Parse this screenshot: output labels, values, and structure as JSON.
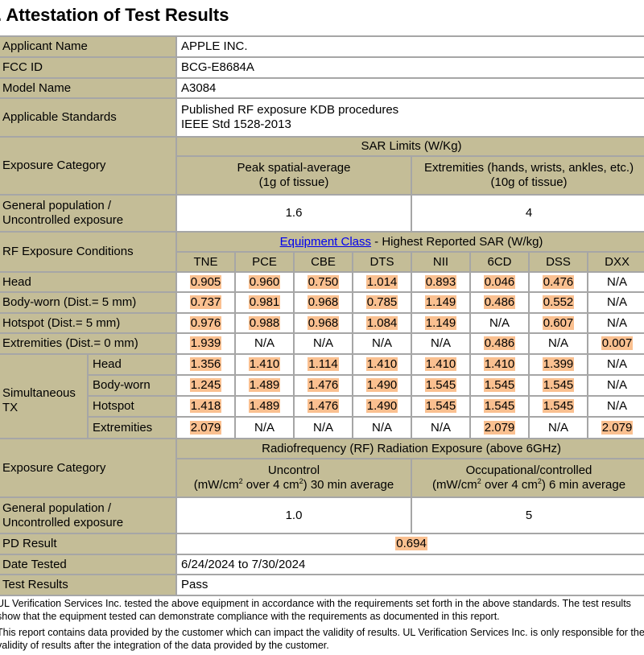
{
  "title": ". Attestation of Test Results",
  "applicant": {
    "label": "Applicant Name",
    "value": "APPLE INC."
  },
  "fcc": {
    "label": "FCC ID",
    "value": "BCG-E8684A"
  },
  "model": {
    "label": "Model Name",
    "value": "A3084"
  },
  "standards": {
    "label": "Applicable Standards",
    "values": [
      "Published RF exposure KDB procedures",
      "IEEE Std 1528-2013"
    ]
  },
  "sar_limits": {
    "category_label": "Exposure Category",
    "header": "SAR Limits (W/Kg)",
    "col1": [
      "Peak spatial-average",
      "(1g of tissue)"
    ],
    "col2": [
      "Extremities (hands, wrists, ankles, etc.)",
      "(10g of tissue)"
    ],
    "gen_pop_label": [
      "General population /",
      "Uncontrolled exposure"
    ],
    "values": [
      "1.6",
      "4"
    ]
  },
  "sar": {
    "conditions_label": "RF Exposure Conditions",
    "link": "Equipment Class",
    "header_rest": " - Highest Reported SAR (W/kg)",
    "columns": [
      "TNE",
      "PCE",
      "CBE",
      "DTS",
      "NII",
      "6CD",
      "DSS",
      "DXX"
    ],
    "sim_label": [
      "Simultaneous",
      "TX"
    ],
    "highlight_color": "#fac090",
    "rows": [
      {
        "label": "Head",
        "values": [
          "0.905",
          "0.960",
          "0.750",
          "1.014",
          "0.893",
          "0.046",
          "0.476",
          "N/A"
        ]
      },
      {
        "label": "Body-worn (Dist.= 5 mm)",
        "values": [
          "0.737",
          "0.981",
          "0.968",
          "0.785",
          "1.149",
          "0.486",
          "0.552",
          "N/A"
        ]
      },
      {
        "label": "Hotspot (Dist.= 5 mm)",
        "values": [
          "0.976",
          "0.988",
          "0.968",
          "1.084",
          "1.149",
          "N/A",
          "0.607",
          "N/A"
        ]
      },
      {
        "label": "Extremities (Dist.= 0 mm)",
        "values": [
          "1.939",
          "N/A",
          "N/A",
          "N/A",
          "N/A",
          "0.486",
          "N/A",
          "0.007"
        ]
      }
    ],
    "sim_rows": [
      {
        "label": "Head",
        "values": [
          "1.356",
          "1.410",
          "1.114",
          "1.410",
          "1.410",
          "1.410",
          "1.399",
          "N/A"
        ]
      },
      {
        "label": "Body-worn",
        "values": [
          "1.245",
          "1.489",
          "1.476",
          "1.490",
          "1.545",
          "1.545",
          "1.545",
          "N/A"
        ]
      },
      {
        "label": "Hotspot",
        "values": [
          "1.418",
          "1.489",
          "1.476",
          "1.490",
          "1.545",
          "1.545",
          "1.545",
          "N/A"
        ]
      },
      {
        "label": "Extremities",
        "values": [
          "2.079",
          "N/A",
          "N/A",
          "N/A",
          "N/A",
          "2.079",
          "N/A",
          "2.079"
        ]
      }
    ]
  },
  "rf": {
    "category_label": "Exposure Category",
    "header": "Radiofrequency (RF) Radiation Exposure (above 6GHz)",
    "col1_title": "Uncontrol",
    "col1_sub_a": "(mW/cm",
    "col1_sub_b": " over 4 cm",
    "col1_sub_c": ") 30 min average",
    "col2_title": "Occupational/controlled",
    "col2_sub_a": "(mW/cm",
    "col2_sub_b": " over 4 cm",
    "col2_sub_c": ") 6 min average",
    "sq": "2",
    "gen_pop_label": [
      "General population /",
      "Uncontrolled exposure"
    ],
    "values": [
      "1.0",
      "5"
    ]
  },
  "pd": {
    "label": "PD Result",
    "value": "0.694"
  },
  "date": {
    "label": "Date Tested",
    "value": "6/24/2024 to 7/30/2024"
  },
  "result": {
    "label": "Test Results",
    "value": "Pass"
  },
  "notes": [
    "UL Verification Services Inc. tested the above equipment in accordance with the requirements set forth in the above standards. The test results show that the equipment tested can demonstrate compliance with the requirements as documented in this report.",
    "This report contains data provided by the customer which can impact the validity of results. UL Verification Services Inc. is only responsible for the validity of results after the integration of the data provided by the customer."
  ]
}
